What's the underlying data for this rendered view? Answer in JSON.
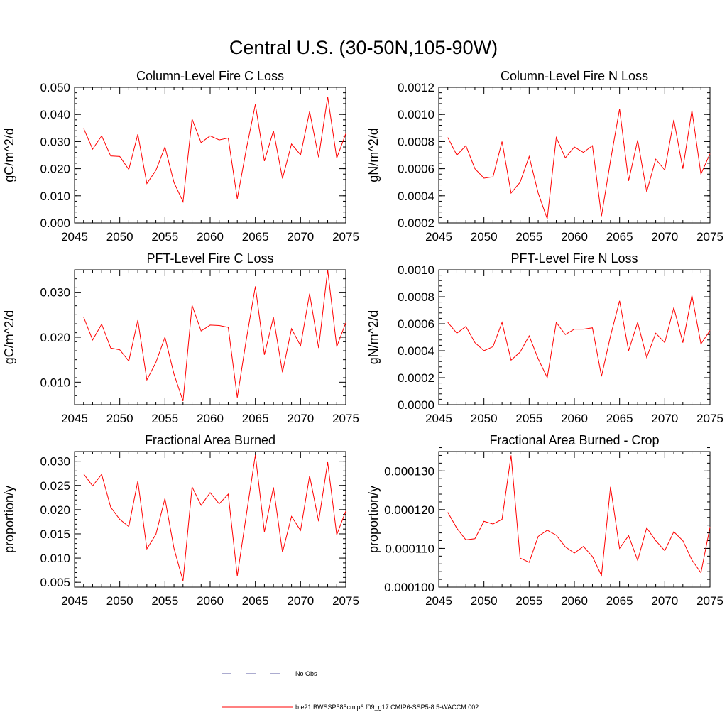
{
  "title": "Central U.S. (30-50N,105-90W)",
  "colors": {
    "series": "#ff0000",
    "obs": "#5a5aa0",
    "axis": "#000000"
  },
  "legend": {
    "entries": [
      {
        "label": "No Obs",
        "style": "dashed",
        "color": "#5a5aa0"
      },
      {
        "label": "b.e21.BWSSP585cmip6.f09_g17.CMIP6-SSP5-8.5-WACCM.002",
        "style": "solid",
        "color": "#ff0000"
      }
    ]
  },
  "chart_data": [
    {
      "type": "line",
      "title": "Column-Level Fire C Loss",
      "ylabel": "gC/m^2/d",
      "xlim": [
        2045,
        2075
      ],
      "ylim": [
        0.0,
        0.05
      ],
      "xticks": [
        2045,
        2050,
        2055,
        2060,
        2065,
        2070,
        2075
      ],
      "xtick_labels": [
        "2045",
        "2050",
        "2055",
        "2060",
        "2065",
        "2070",
        "2075"
      ],
      "yticks": [
        0.0,
        0.01,
        0.02,
        0.03,
        0.04,
        0.05
      ],
      "ytick_labels": [
        "0.000",
        "0.010",
        "0.020",
        "0.030",
        "0.040",
        "0.050"
      ],
      "yminor": 0.002,
      "x": [
        2046,
        2047,
        2048,
        2049,
        2050,
        2051,
        2052,
        2053,
        2054,
        2055,
        2056,
        2057,
        2058,
        2059,
        2060,
        2061,
        2062,
        2063,
        2064,
        2065,
        2066,
        2067,
        2068,
        2069,
        2070,
        2071,
        2072,
        2073,
        2074,
        2075
      ],
      "series": [
        {
          "name": "b.e21.BWSSP585cmip6.f09_g17.CMIP6-SSP5-8.5-WACCM.002",
          "values": [
            0.0349,
            0.0272,
            0.0321,
            0.0247,
            0.0245,
            0.0197,
            0.0327,
            0.0145,
            0.0194,
            0.028,
            0.0149,
            0.0078,
            0.0383,
            0.0296,
            0.0321,
            0.0306,
            0.0313,
            0.0089,
            0.0272,
            0.0437,
            0.0228,
            0.034,
            0.0164,
            0.0291,
            0.0251,
            0.0411,
            0.0242,
            0.0465,
            0.0239,
            0.0329
          ]
        }
      ]
    },
    {
      "type": "line",
      "title": "Column-Level Fire N Loss",
      "ylabel": "gN/m^2/d",
      "xlim": [
        2045,
        2075
      ],
      "ylim": [
        0.0002,
        0.0012
      ],
      "xticks": [
        2045,
        2050,
        2055,
        2060,
        2065,
        2070,
        2075
      ],
      "xtick_labels": [
        "2045",
        "2050",
        "2055",
        "2060",
        "2065",
        "2070",
        "2075"
      ],
      "yticks": [
        0.0002,
        0.0004,
        0.0006,
        0.0008,
        0.001,
        0.0012
      ],
      "ytick_labels": [
        "0.0002",
        "0.0004",
        "0.0006",
        "0.0008",
        "0.0010",
        "0.0012"
      ],
      "yminor": 4e-05,
      "x": [
        2046,
        2047,
        2048,
        2049,
        2050,
        2051,
        2052,
        2053,
        2054,
        2055,
        2056,
        2057,
        2058,
        2059,
        2060,
        2061,
        2062,
        2063,
        2064,
        2065,
        2066,
        2067,
        2068,
        2069,
        2070,
        2071,
        2072,
        2073,
        2074,
        2075
      ],
      "series": [
        {
          "name": "b.e21.BWSSP585cmip6.f09_g17.CMIP6-SSP5-8.5-WACCM.002",
          "values": [
            0.00083,
            0.0007,
            0.00077,
            0.0006,
            0.00053,
            0.00054,
            0.0008,
            0.00042,
            0.0005,
            0.00069,
            0.00042,
            0.00023,
            0.00083,
            0.00068,
            0.00076,
            0.00072,
            0.00077,
            0.00025,
            0.00066,
            0.00104,
            0.00051,
            0.00081,
            0.00043,
            0.00067,
            0.00059,
            0.00096,
            0.0006,
            0.00103,
            0.00056,
            0.00071
          ]
        }
      ]
    },
    {
      "type": "line",
      "title": "PFT-Level Fire C Loss",
      "ylabel": "gC/m^2/d",
      "xlim": [
        2045,
        2075
      ],
      "ylim": [
        0.005,
        0.035
      ],
      "xticks": [
        2045,
        2050,
        2055,
        2060,
        2065,
        2070,
        2075
      ],
      "xtick_labels": [
        "2045",
        "2050",
        "2055",
        "2060",
        "2065",
        "2070",
        "2075"
      ],
      "yticks": [
        0.01,
        0.02,
        0.03
      ],
      "ytick_labels": [
        "0.010",
        "0.020",
        "0.030"
      ],
      "yminor": 0.002,
      "x": [
        2046,
        2047,
        2048,
        2049,
        2050,
        2051,
        2052,
        2053,
        2054,
        2055,
        2056,
        2057,
        2058,
        2059,
        2060,
        2061,
        2062,
        2063,
        2064,
        2065,
        2066,
        2067,
        2068,
        2069,
        2070,
        2071,
        2072,
        2073,
        2074,
        2075
      ],
      "series": [
        {
          "name": "b.e21.BWSSP585cmip6.f09_g17.CMIP6-SSP5-8.5-WACCM.002",
          "values": [
            0.0245,
            0.0194,
            0.0229,
            0.0176,
            0.0172,
            0.0147,
            0.0238,
            0.0105,
            0.0144,
            0.02,
            0.0118,
            0.0058,
            0.0271,
            0.0214,
            0.0227,
            0.0226,
            0.0222,
            0.0066,
            0.0195,
            0.0313,
            0.0161,
            0.0244,
            0.0122,
            0.0219,
            0.0181,
            0.0297,
            0.0176,
            0.035,
            0.0179,
            0.0232
          ]
        }
      ]
    },
    {
      "type": "line",
      "title": "PFT-Level Fire N Loss",
      "ylabel": "gN/m^2/d",
      "xlim": [
        2045,
        2075
      ],
      "ylim": [
        0.0,
        0.001
      ],
      "xticks": [
        2045,
        2050,
        2055,
        2060,
        2065,
        2070,
        2075
      ],
      "xtick_labels": [
        "2045",
        "2050",
        "2055",
        "2060",
        "2065",
        "2070",
        "2075"
      ],
      "yticks": [
        0.0,
        0.0002,
        0.0004,
        0.0006,
        0.0008,
        0.001
      ],
      "ytick_labels": [
        "0.0000",
        "0.0002",
        "0.0004",
        "0.0006",
        "0.0008",
        "0.0010"
      ],
      "yminor": 4e-05,
      "x": [
        2046,
        2047,
        2048,
        2049,
        2050,
        2051,
        2052,
        2053,
        2054,
        2055,
        2056,
        2057,
        2058,
        2059,
        2060,
        2061,
        2062,
        2063,
        2064,
        2065,
        2066,
        2067,
        2068,
        2069,
        2070,
        2071,
        2072,
        2073,
        2074,
        2075
      ],
      "series": [
        {
          "name": "b.e21.BWSSP585cmip6.f09_g17.CMIP6-SSP5-8.5-WACCM.002",
          "values": [
            0.00061,
            0.00053,
            0.00058,
            0.00046,
            0.0004,
            0.00043,
            0.00061,
            0.00033,
            0.00039,
            0.00051,
            0.00034,
            0.0002,
            0.00061,
            0.00052,
            0.00056,
            0.00056,
            0.00057,
            0.00021,
            0.00051,
            0.00077,
            0.0004,
            0.00061,
            0.00035,
            0.00053,
            0.00046,
            0.00072,
            0.00046,
            0.00081,
            0.00045,
            0.00055
          ]
        }
      ]
    },
    {
      "type": "line",
      "title": "Fractional Area Burned",
      "ylabel": "proportion/y",
      "xlim": [
        2045,
        2075
      ],
      "ylim": [
        0.004,
        0.032
      ],
      "xticks": [
        2045,
        2050,
        2055,
        2060,
        2065,
        2070,
        2075
      ],
      "xtick_labels": [
        "2045",
        "2050",
        "2055",
        "2060",
        "2065",
        "2070",
        "2075"
      ],
      "yticks": [
        0.005,
        0.01,
        0.015,
        0.02,
        0.025,
        0.03
      ],
      "ytick_labels": [
        "0.005",
        "0.010",
        "0.015",
        "0.020",
        "0.025",
        "0.030"
      ],
      "yminor": 0.001,
      "x": [
        2046,
        2047,
        2048,
        2049,
        2050,
        2051,
        2052,
        2053,
        2054,
        2055,
        2056,
        2057,
        2058,
        2059,
        2060,
        2061,
        2062,
        2063,
        2064,
        2065,
        2066,
        2067,
        2068,
        2069,
        2070,
        2071,
        2072,
        2073,
        2074,
        2075
      ],
      "series": [
        {
          "name": "b.e21.BWSSP585cmip6.f09_g17.CMIP6-SSP5-8.5-WACCM.002",
          "values": [
            0.0274,
            0.0249,
            0.0273,
            0.0205,
            0.018,
            0.0165,
            0.0259,
            0.0119,
            0.0149,
            0.0223,
            0.012,
            0.0053,
            0.0247,
            0.0209,
            0.0235,
            0.0212,
            0.0232,
            0.0063,
            0.0189,
            0.0313,
            0.0154,
            0.0246,
            0.0112,
            0.0186,
            0.0157,
            0.027,
            0.0176,
            0.0298,
            0.0148,
            0.0197
          ]
        }
      ]
    },
    {
      "type": "line",
      "title": "Fractional Area Burned - Crop",
      "ylabel": "proportion/y",
      "xlim": [
        2045,
        2075
      ],
      "ylim": [
        0.0001,
        0.000135
      ],
      "xticks": [
        2045,
        2050,
        2055,
        2060,
        2065,
        2070,
        2075
      ],
      "xtick_labels": [
        "2045",
        "2050",
        "2055",
        "2060",
        "2065",
        "2070",
        "2075"
      ],
      "yticks": [
        0.0001,
        0.00011,
        0.00012,
        0.00013
      ],
      "ytick_labels": [
        "0.000100",
        "0.000110",
        "0.000120",
        "0.000130"
      ],
      "yminor": 2e-06,
      "x": [
        2046,
        2047,
        2048,
        2049,
        2050,
        2051,
        2052,
        2053,
        2054,
        2055,
        2056,
        2057,
        2058,
        2059,
        2060,
        2061,
        2062,
        2063,
        2064,
        2065,
        2066,
        2067,
        2068,
        2069,
        2070,
        2071,
        2072,
        2073,
        2074,
        2075
      ],
      "series": [
        {
          "name": "b.e21.BWSSP585cmip6.f09_g17.CMIP6-SSP5-8.5-WACCM.002",
          "values": [
            0.0001193,
            0.0001152,
            0.0001122,
            0.0001125,
            0.000117,
            0.0001163,
            0.0001175,
            0.000134,
            0.0001075,
            0.0001064,
            0.0001131,
            0.0001147,
            0.0001134,
            0.0001104,
            0.0001088,
            0.0001105,
            0.0001079,
            0.000103,
            0.0001259,
            0.00011,
            0.0001133,
            0.0001069,
            0.0001153,
            0.000112,
            0.0001094,
            0.0001143,
            0.000112,
            0.000107,
            0.0001037,
            0.0001155
          ]
        }
      ]
    }
  ]
}
